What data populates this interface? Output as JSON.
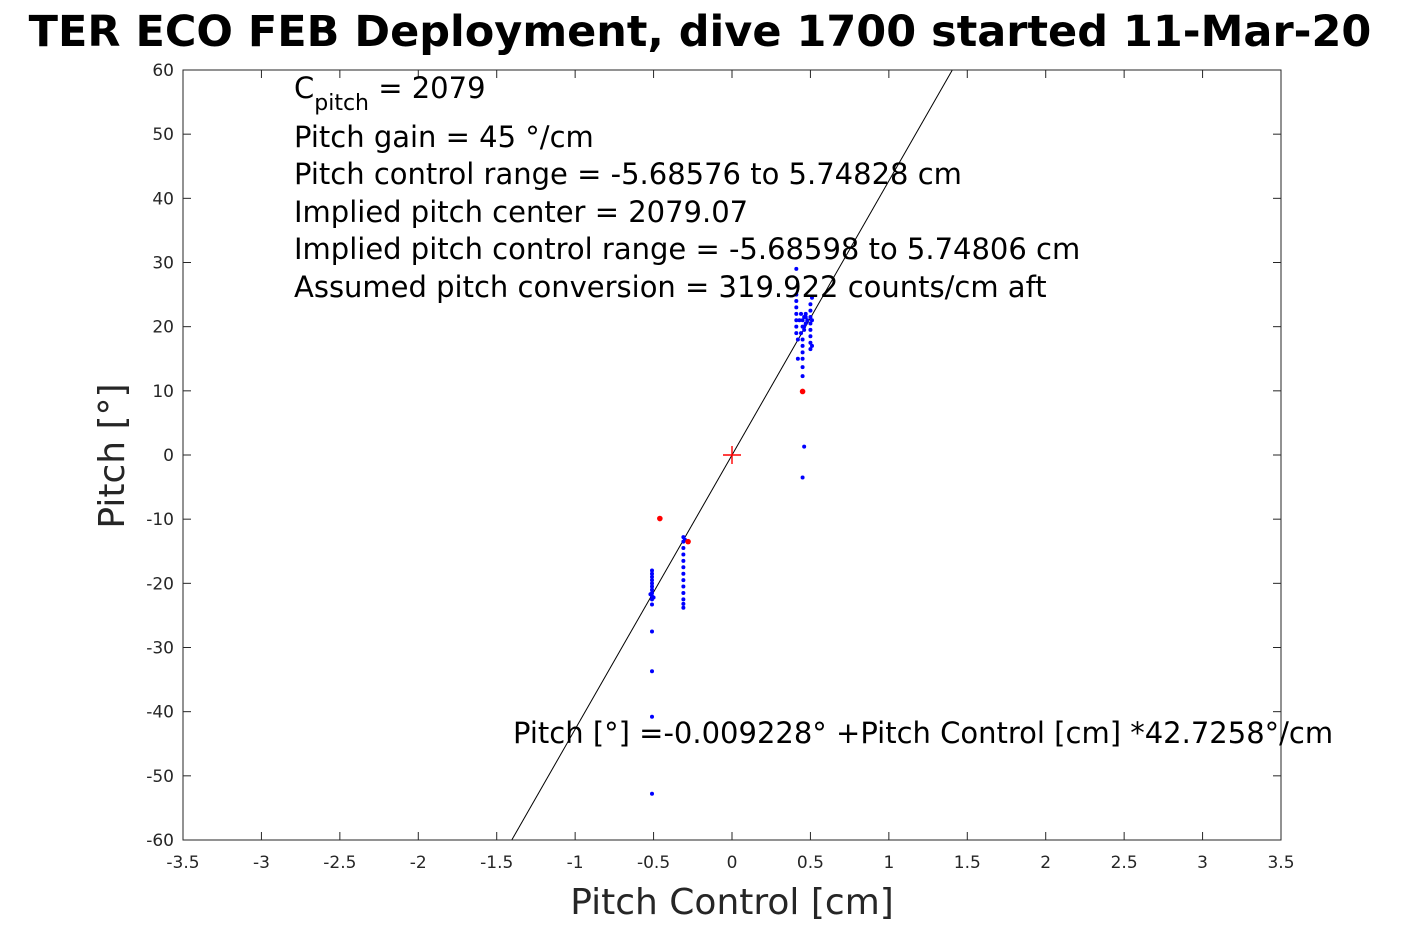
{
  "chart_data": {
    "type": "scatter",
    "title": "TER ECO FEB Deployment, dive 1700 started 11-Mar-20",
    "xlabel": "Pitch Control [cm]",
    "ylabel": "Pitch [°]",
    "xlim": [
      -3.5,
      3.5
    ],
    "ylim": [
      -60,
      60
    ],
    "xticks": [
      -3.5,
      -3,
      -2.5,
      -2,
      -1.5,
      -1,
      -0.5,
      0,
      0.5,
      1,
      1.5,
      2,
      2.5,
      3,
      3.5
    ],
    "xtick_labels": [
      "-3.5",
      "-3",
      "-2.5",
      "-2",
      "-1.5",
      "-1",
      "-0.5",
      "0",
      "0.5",
      "1",
      "1.5",
      "2",
      "2.5",
      "3",
      "3.5"
    ],
    "yticks": [
      -60,
      -50,
      -40,
      -30,
      -20,
      -10,
      0,
      10,
      20,
      30,
      40,
      50,
      60
    ],
    "ytick_labels": [
      "-60",
      "-50",
      "-40",
      "-30",
      "-20",
      "-10",
      "0",
      "10",
      "20",
      "30",
      "40",
      "50",
      "60"
    ],
    "grid": true,
    "colors": {
      "points": "#0000ff",
      "outliers": "#ff0000",
      "fit_line": "#000000",
      "center_marker": "#ff0000"
    },
    "fit_line": {
      "intercept": -0.009228,
      "slope": 42.7258
    },
    "center_marker": {
      "x": 0,
      "y": 0
    },
    "annotations": {
      "cpitch_main": "C",
      "cpitch_sub": "pitch",
      "cpitch_value": " = 2079",
      "lines": [
        "Pitch gain = 45 °/cm",
        "Pitch control range = -5.68576 to 5.74828 cm",
        "Implied pitch center = 2079.07",
        "Implied pitch control range = -5.68598 to 5.74806 cm",
        "Assumed pitch conversion = 319.922 counts/cm aft"
      ],
      "fit_equation": "Pitch [°] =-0.009228° +Pitch Control [cm] *42.7258°/cm"
    },
    "series": [
      {
        "color": "#0000ff",
        "points": [
          [
            -0.51,
            -18
          ],
          [
            -0.51,
            -18.5
          ],
          [
            -0.51,
            -19
          ],
          [
            -0.51,
            -19.5
          ],
          [
            -0.51,
            -20
          ],
          [
            -0.51,
            -20.5
          ],
          [
            -0.51,
            -21
          ],
          [
            -0.51,
            -21.5
          ],
          [
            -0.51,
            -22
          ],
          [
            -0.51,
            -22.5
          ],
          [
            -0.51,
            -23.3
          ],
          [
            -0.52,
            -21.7
          ],
          [
            -0.5,
            -22.2
          ],
          [
            -0.51,
            -27.5
          ],
          [
            -0.51,
            -33.7
          ],
          [
            -0.51,
            -40.8
          ],
          [
            -0.51,
            -52.8
          ],
          [
            -0.31,
            -12.8
          ],
          [
            -0.31,
            -13.5
          ],
          [
            -0.31,
            -14.5
          ],
          [
            -0.31,
            -15.5
          ],
          [
            -0.31,
            -16.5
          ],
          [
            -0.31,
            -17.5
          ],
          [
            -0.31,
            -18.5
          ],
          [
            -0.31,
            -19.5
          ],
          [
            -0.31,
            -20.5
          ],
          [
            -0.31,
            -21.5
          ],
          [
            -0.31,
            -22.5
          ],
          [
            -0.31,
            -23.2
          ],
          [
            -0.31,
            -23.8
          ],
          [
            -0.3,
            -13.2
          ],
          [
            0.41,
            29
          ],
          [
            0.41,
            25
          ],
          [
            0.41,
            24
          ],
          [
            0.41,
            23
          ],
          [
            0.41,
            22
          ],
          [
            0.41,
            21
          ],
          [
            0.41,
            20
          ],
          [
            0.41,
            19
          ],
          [
            0.42,
            15
          ],
          [
            0.42,
            18
          ],
          [
            0.43,
            21
          ],
          [
            0.44,
            19
          ],
          [
            0.44,
            22
          ],
          [
            0.45,
            20
          ],
          [
            0.45,
            21
          ],
          [
            0.45,
            18
          ],
          [
            0.45,
            17
          ],
          [
            0.45,
            16
          ],
          [
            0.45,
            15
          ],
          [
            0.45,
            13.7
          ],
          [
            0.45,
            12.3
          ],
          [
            0.46,
            20
          ],
          [
            0.46,
            21.5
          ],
          [
            0.46,
            19.5
          ],
          [
            0.46,
            1.3
          ],
          [
            0.45,
            -3.5
          ],
          [
            0.47,
            20.5
          ],
          [
            0.47,
            21.5
          ],
          [
            0.47,
            22
          ],
          [
            0.48,
            21
          ],
          [
            0.5,
            16.5
          ],
          [
            0.5,
            17.5
          ],
          [
            0.5,
            18.5
          ],
          [
            0.5,
            19.5
          ],
          [
            0.5,
            20.5
          ],
          [
            0.5,
            21.5
          ],
          [
            0.5,
            22.5
          ],
          [
            0.5,
            23.5
          ],
          [
            0.51,
            21
          ],
          [
            0.51,
            24.5
          ],
          [
            0.51,
            17
          ]
        ]
      },
      {
        "color": "#ff0000",
        "points": [
          [
            -0.46,
            -9.9
          ],
          [
            -0.28,
            -13.5
          ],
          [
            0.45,
            9.9
          ]
        ]
      }
    ]
  }
}
